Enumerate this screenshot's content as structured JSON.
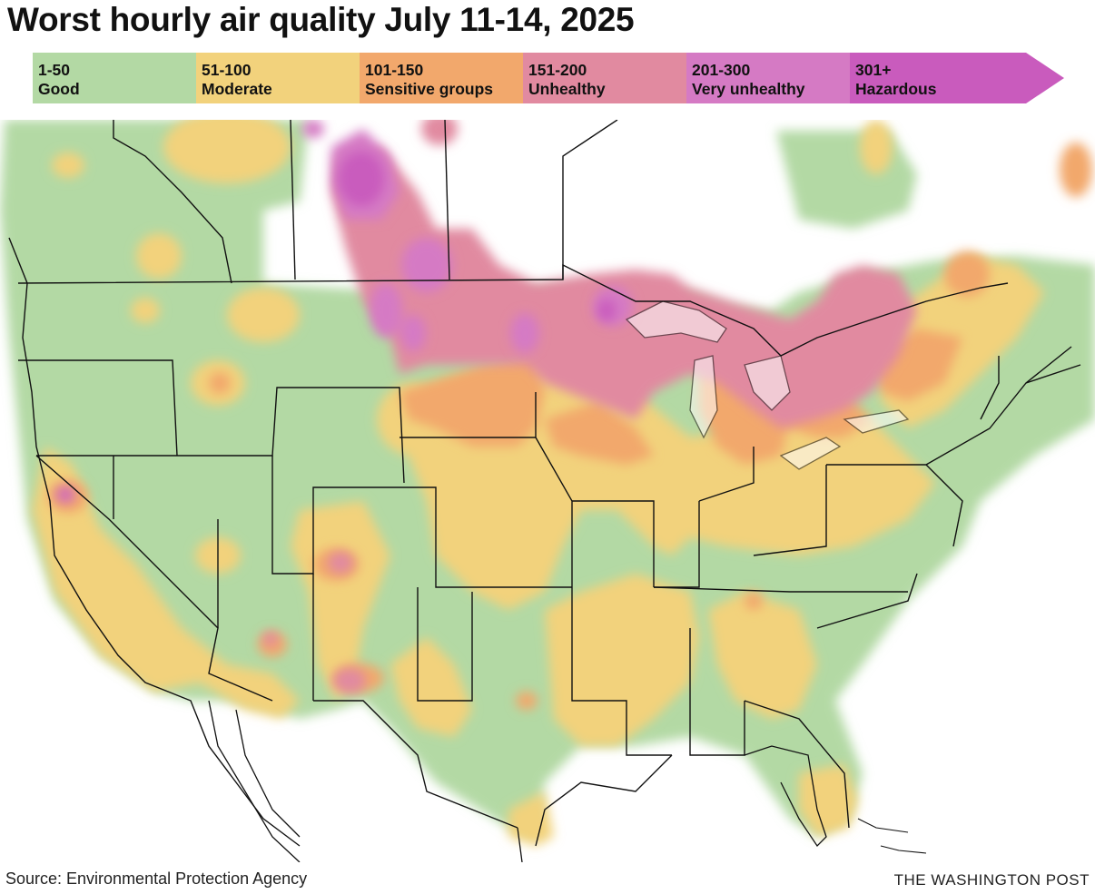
{
  "title": "Worst hourly air quality July 11-14, 2025",
  "legend": [
    {
      "range": "1-50",
      "label": "Good",
      "color": "#b3d9a4"
    },
    {
      "range": "51-100",
      "label": "Moderate",
      "color": "#f2d27c"
    },
    {
      "range": "101-150",
      "label": "Sensitive groups",
      "color": "#f2a86c"
    },
    {
      "range": "151-200",
      "label": "Unhealthy",
      "color": "#e18aa0"
    },
    {
      "range": "201-300",
      "label": "Very unhealthy",
      "color": "#d57ac4"
    },
    {
      "range": "301+",
      "label": "Hazardous",
      "color": "#c95bbd"
    }
  ],
  "source": "Source: Environmental Protection Agency",
  "credit": "THE WASHINGTON POST"
}
